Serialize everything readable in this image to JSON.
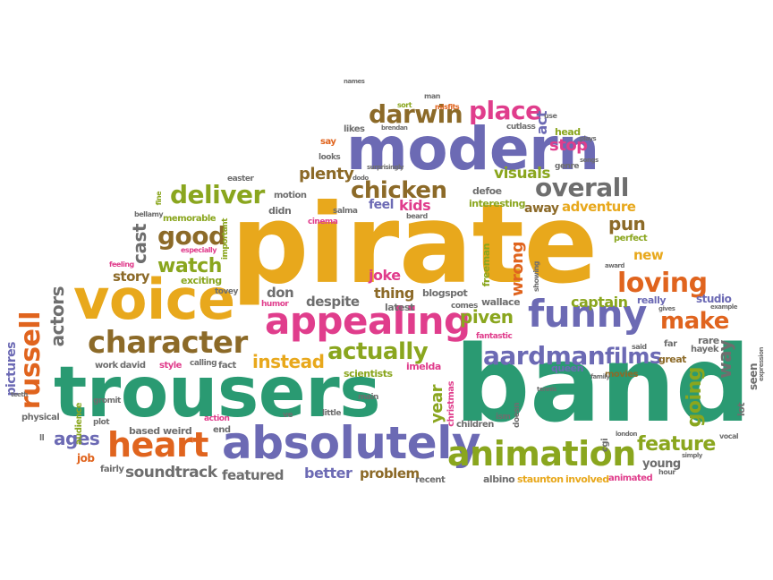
{
  "palette": {
    "green": "#2a9a72",
    "gold": "#e8a81c",
    "purple": "#6c6ab4",
    "magenta": "#e03d8c",
    "orange": "#e0641e",
    "olive": "#8aa61e",
    "brown": "#8c6a28",
    "gray": "#6e6e6e"
  },
  "words": [
    {
      "text": "pirate",
      "color": "gold"
    },
    {
      "text": "band",
      "color": "green"
    },
    {
      "text": "trousers",
      "color": "green"
    },
    {
      "text": "modern",
      "color": "purple"
    },
    {
      "text": "voice",
      "color": "gold"
    },
    {
      "text": "absolutely",
      "color": "purple"
    },
    {
      "text": "animation",
      "color": "olive"
    },
    {
      "text": "appealing",
      "color": "magenta"
    },
    {
      "text": "character",
      "color": "brown"
    },
    {
      "text": "heart",
      "color": "orange"
    },
    {
      "text": "funny",
      "color": "purple"
    },
    {
      "text": "aardman",
      "color": "purple"
    },
    {
      "text": "russell",
      "color": "orange"
    },
    {
      "text": "darwin",
      "color": "brown"
    },
    {
      "text": "place",
      "color": "magenta"
    },
    {
      "text": "chicken",
      "color": "brown"
    },
    {
      "text": "overall",
      "color": "gray"
    },
    {
      "text": "deliver",
      "color": "olive"
    },
    {
      "text": "good",
      "color": "brown"
    },
    {
      "text": "watch",
      "color": "olive"
    },
    {
      "text": "loving",
      "color": "orange"
    },
    {
      "text": "make",
      "color": "orange"
    },
    {
      "text": "actually",
      "color": "olive"
    },
    {
      "text": "instead",
      "color": "gold"
    },
    {
      "text": "films",
      "color": "purple"
    },
    {
      "text": "piven",
      "color": "olive"
    },
    {
      "text": "feature",
      "color": "olive"
    },
    {
      "text": "going",
      "color": "olive"
    },
    {
      "text": "way",
      "color": "gray"
    },
    {
      "text": "actors",
      "color": "gray"
    },
    {
      "text": "ages",
      "color": "purple"
    },
    {
      "text": "soundtrack",
      "color": "gray"
    },
    {
      "text": "plenty",
      "color": "brown"
    },
    {
      "text": "kids",
      "color": "magenta"
    },
    {
      "text": "feel",
      "color": "purple"
    },
    {
      "text": "visuals",
      "color": "olive"
    },
    {
      "text": "adventure",
      "color": "gold"
    },
    {
      "text": "pun",
      "color": "brown"
    },
    {
      "text": "cast",
      "color": "gray"
    },
    {
      "text": "captain",
      "color": "olive"
    },
    {
      "text": "despite",
      "color": "gray"
    },
    {
      "text": "don",
      "color": "gray"
    },
    {
      "text": "thing",
      "color": "brown"
    },
    {
      "text": "joke",
      "color": "magenta"
    },
    {
      "text": "wrong",
      "color": "orange"
    },
    {
      "text": "stop",
      "color": "magenta"
    },
    {
      "text": "head",
      "color": "olive"
    },
    {
      "text": "year",
      "color": "olive"
    },
    {
      "text": "better",
      "color": "purple"
    },
    {
      "text": "problem",
      "color": "brown"
    },
    {
      "text": "featured",
      "color": "gray"
    },
    {
      "text": "story",
      "color": "brown"
    },
    {
      "text": "new",
      "color": "gold"
    },
    {
      "text": "exciting",
      "color": "olive"
    },
    {
      "text": "away",
      "color": "brown"
    },
    {
      "text": "act",
      "color": "purple"
    },
    {
      "text": "pictures",
      "color": "purple"
    },
    {
      "text": "seen",
      "color": "gray"
    },
    {
      "text": "lot",
      "color": "gray"
    },
    {
      "text": "young",
      "color": "gray"
    },
    {
      "text": "job",
      "color": "orange"
    },
    {
      "text": "studio",
      "color": "purple"
    },
    {
      "text": "really",
      "color": "purple"
    },
    {
      "text": "great",
      "color": "brown"
    },
    {
      "text": "rare",
      "color": "gray"
    },
    {
      "text": "movies",
      "color": "brown"
    },
    {
      "text": "queen",
      "color": "purple"
    },
    {
      "text": "imelda",
      "color": "magenta"
    },
    {
      "text": "scientists",
      "color": "olive"
    },
    {
      "text": "fantastic",
      "color": "magenta"
    },
    {
      "text": "latest",
      "color": "gray"
    },
    {
      "text": "blogspot",
      "color": "gray"
    },
    {
      "text": "comes",
      "color": "gray"
    },
    {
      "text": "wallace",
      "color": "gray"
    },
    {
      "text": "interesting",
      "color": "olive"
    },
    {
      "text": "defoe",
      "color": "gray"
    },
    {
      "text": "freeman",
      "color": "olive"
    },
    {
      "text": "christmas",
      "color": "magenta"
    },
    {
      "text": "children",
      "color": "gray"
    },
    {
      "text": "little",
      "color": "gray"
    },
    {
      "text": "main",
      "color": "gray"
    },
    {
      "text": "doesn",
      "color": "gray"
    },
    {
      "text": "ism",
      "color": "gray"
    },
    {
      "text": "albino",
      "color": "gray"
    },
    {
      "text": "staunton",
      "color": "gold"
    },
    {
      "text": "involved",
      "color": "gold"
    },
    {
      "text": "animated",
      "color": "magenta"
    },
    {
      "text": "recent",
      "color": "gray"
    },
    {
      "text": "based",
      "color": "gray"
    },
    {
      "text": "weird",
      "color": "gray"
    },
    {
      "text": "fairly",
      "color": "gray"
    },
    {
      "text": "david",
      "color": "gray"
    },
    {
      "text": "work",
      "color": "gray"
    },
    {
      "text": "style",
      "color": "magenta"
    },
    {
      "text": "fact",
      "color": "gray"
    },
    {
      "text": "physical",
      "color": "gray"
    },
    {
      "text": "audience",
      "color": "olive"
    },
    {
      "text": "plot",
      "color": "gray"
    },
    {
      "text": "gromit",
      "color": "gray"
    },
    {
      "text": "action",
      "color": "magenta"
    },
    {
      "text": "end",
      "color": "gray"
    },
    {
      "text": "calling",
      "color": "gray"
    },
    {
      "text": "ve",
      "color": "gray"
    },
    {
      "text": "humor",
      "color": "magenta"
    },
    {
      "text": "tovey",
      "color": "gray"
    },
    {
      "text": "feeling",
      "color": "magenta"
    },
    {
      "text": "memorable",
      "color": "olive"
    },
    {
      "text": "especially",
      "color": "magenta"
    },
    {
      "text": "important",
      "color": "olive"
    },
    {
      "text": "motion",
      "color": "gray"
    },
    {
      "text": "didn",
      "color": "gray"
    },
    {
      "text": "cinema",
      "color": "magenta"
    },
    {
      "text": "salma",
      "color": "gray"
    },
    {
      "text": "beard",
      "color": "gray"
    },
    {
      "text": "easter",
      "color": "gray"
    },
    {
      "text": "bellamy",
      "color": "gray"
    },
    {
      "text": "fine",
      "color": "olive"
    },
    {
      "text": "say",
      "color": "orange"
    },
    {
      "text": "looks",
      "color": "gray"
    },
    {
      "text": "likes",
      "color": "gray"
    },
    {
      "text": "sort",
      "color": "olive"
    },
    {
      "text": "man",
      "color": "gray"
    },
    {
      "text": "misfits",
      "color": "orange"
    },
    {
      "text": "cutlass",
      "color": "gray"
    },
    {
      "text": "brendan",
      "color": "gray"
    },
    {
      "text": "use",
      "color": "gray"
    },
    {
      "text": "plays",
      "color": "gray"
    },
    {
      "text": "surprisingly",
      "color": "gray"
    },
    {
      "text": "dodo",
      "color": "gray"
    },
    {
      "text": "genre",
      "color": "gray"
    },
    {
      "text": "songs",
      "color": "gray"
    },
    {
      "text": "perfect",
      "color": "olive"
    },
    {
      "text": "award",
      "color": "gray"
    },
    {
      "text": "showing",
      "color": "gray"
    },
    {
      "text": "gives",
      "color": "gray"
    },
    {
      "text": "example",
      "color": "gray"
    },
    {
      "text": "said",
      "color": "gray"
    },
    {
      "text": "far",
      "color": "gray"
    },
    {
      "text": "hayek",
      "color": "gray"
    },
    {
      "text": "hour",
      "color": "gray"
    },
    {
      "text": "simply",
      "color": "gray"
    },
    {
      "text": "vocal",
      "color": "gray"
    },
    {
      "text": "expression",
      "color": "gray"
    },
    {
      "text": "london",
      "color": "gray"
    },
    {
      "text": "names",
      "color": "gray"
    },
    {
      "text": "family",
      "color": "gray"
    },
    {
      "text": "cgi",
      "color": "gray"
    },
    {
      "text": "teeth",
      "color": "gray"
    },
    {
      "text": "ll",
      "color": "gray"
    },
    {
      "text": "tennis",
      "color": "gray"
    }
  ]
}
